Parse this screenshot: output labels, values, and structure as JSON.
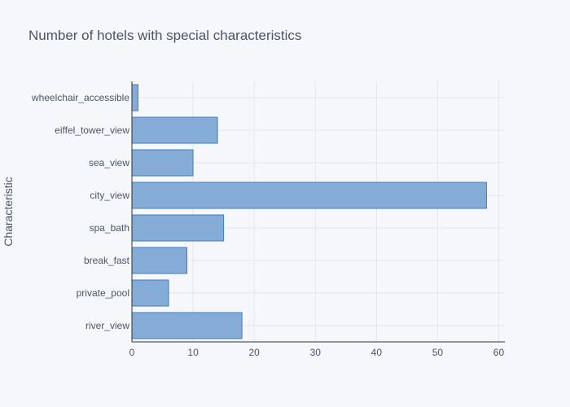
{
  "chart_data": {
    "type": "bar",
    "orientation": "horizontal",
    "title": "Number of hotels with special characteristics",
    "xlabel": "",
    "ylabel": "Characteristic",
    "xlim": [
      0,
      61
    ],
    "x_ticks": [
      "0",
      "10",
      "20",
      "30",
      "40",
      "50",
      "60"
    ],
    "x_tick_values": [
      0,
      10,
      20,
      30,
      40,
      50,
      60
    ],
    "categories": [
      "wheelchair_accessible",
      "eiffel_tower_view",
      "sea_view",
      "city_view",
      "spa_bath",
      "break_fast",
      "private_pool",
      "river_view"
    ],
    "values": [
      1,
      14,
      10,
      58,
      15,
      9,
      6,
      18
    ],
    "grid": true,
    "legend": "none",
    "bar_color": "#84acd6",
    "bar_edge_color": "#3f7fbf"
  }
}
